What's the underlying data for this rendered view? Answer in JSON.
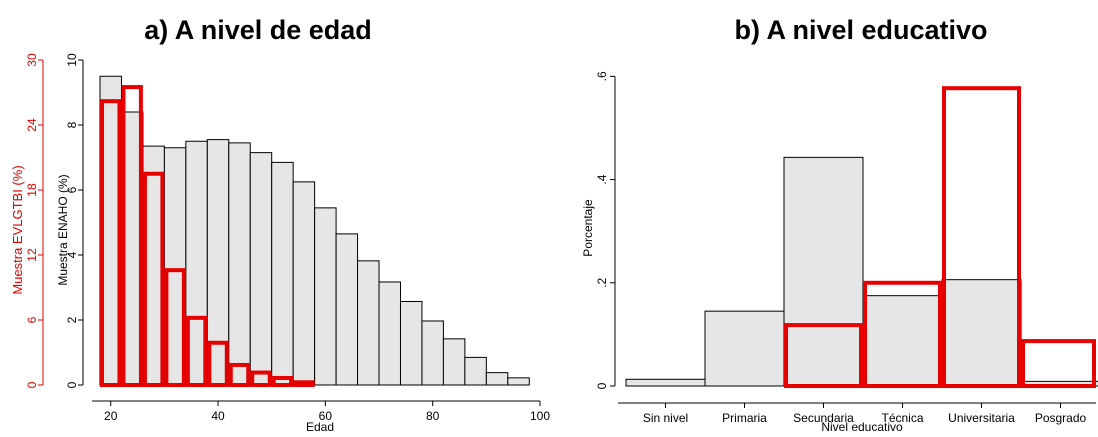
{
  "chart_data": [
    {
      "type": "bar",
      "title": "a) A nivel de edad",
      "xlabel": "Edad",
      "ylabel_left": "Muestra EVLGTBI (%)",
      "ylabel_right": "Muestra ENAHO (%)",
      "xlim": [
        18,
        100
      ],
      "x_ticks": [
        20,
        40,
        60,
        80,
        100
      ],
      "x_tick_labels": [
        "20",
        "40",
        "60",
        "80",
        "100"
      ],
      "ylim_left": [
        0,
        30
      ],
      "left_ticks": [
        0,
        6,
        12,
        18,
        24,
        30
      ],
      "left_tick_labels": [
        "0",
        "6",
        "12",
        "18",
        "24",
        "30"
      ],
      "ylim_right": [
        0,
        10
      ],
      "right_ticks": [
        0,
        2,
        4,
        6,
        8,
        10
      ],
      "right_tick_labels": [
        "0",
        "2",
        "4",
        "6",
        "8",
        "10"
      ],
      "grid": false,
      "bin_width": 4,
      "series": [
        {
          "axis": "right",
          "style": "gray-filled",
          "bin_starts": [
            18,
            22,
            26,
            30,
            34,
            38,
            42,
            46,
            50,
            54,
            58,
            62,
            66,
            70,
            74,
            78,
            82,
            86,
            90,
            94
          ],
          "values": [
            9.5,
            8.4,
            7.35,
            7.3,
            7.5,
            7.55,
            7.45,
            7.15,
            6.85,
            6.25,
            5.45,
            4.65,
            3.82,
            3.17,
            2.57,
            1.97,
            1.42,
            0.85,
            0.38,
            0.22
          ]
        },
        {
          "axis": "left",
          "style": "red-outline",
          "bin_starts": [
            18,
            22,
            26,
            30,
            34,
            38,
            42,
            46,
            50,
            54
          ],
          "values": [
            26.2,
            27.5,
            19.5,
            10.6,
            6.2,
            3.9,
            1.85,
            1.15,
            0.65,
            0.25
          ]
        }
      ]
    },
    {
      "type": "bar",
      "title": "b) A nivel educativo",
      "xlabel": "Nivel educativo",
      "ylabel": "Porcentaje",
      "categories": [
        "Sin nivel",
        "Primaria",
        "Secundaria",
        "Técnica",
        "Universitaria",
        "Posgrado"
      ],
      "ylim": [
        0,
        0.62
      ],
      "y_ticks": [
        0,
        0.2,
        0.4,
        0.6
      ],
      "y_tick_labels": [
        "0",
        ".2",
        ".4",
        ".6"
      ],
      "grid": false,
      "series": [
        {
          "style": "gray-filled",
          "values": [
            0.013,
            0.145,
            0.443,
            0.175,
            0.206,
            0.009
          ]
        },
        {
          "style": "red-outline",
          "values": [
            0,
            0,
            0.118,
            0.2,
            0.577,
            0.087
          ]
        }
      ]
    }
  ],
  "colors": {
    "bar_fill": "#e6e6e6",
    "bar_stroke": "#000000",
    "accent_red": "#e60000",
    "axis": "#000000"
  }
}
